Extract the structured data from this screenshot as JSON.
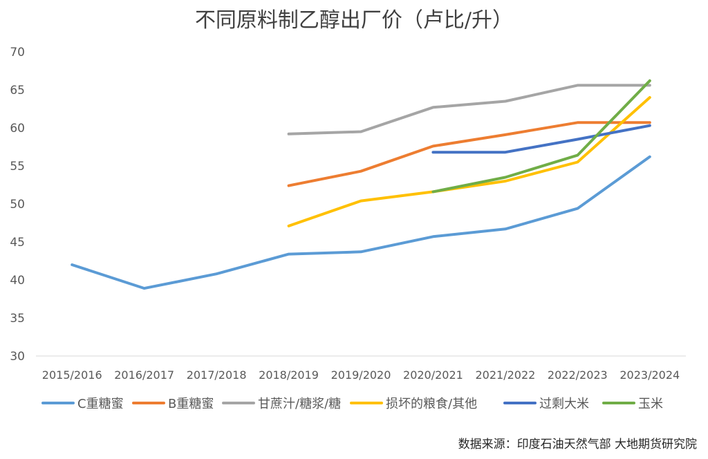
{
  "chart_data": {
    "type": "line",
    "title": "不同原料制乙醇出厂价（卢比/升）",
    "xlabel": "",
    "ylabel": "",
    "ylim": [
      30,
      70
    ],
    "y_ticks": [
      "30",
      "35",
      "40",
      "45",
      "50",
      "55",
      "60",
      "65",
      "70"
    ],
    "grid": false,
    "legend_position": "bottom",
    "categories": [
      "2015/2016",
      "2016/2017",
      "2017/2018",
      "2018/2019",
      "2019/2020",
      "2020/2021",
      "2021/2022",
      "2022/2023",
      "2023/2024"
    ],
    "series": [
      {
        "name": "C重糖蜜",
        "color": "#5B9BD5",
        "values": [
          42.0,
          38.9,
          40.8,
          43.4,
          43.7,
          45.7,
          46.7,
          49.4,
          56.2
        ]
      },
      {
        "name": "B重糖蜜",
        "color": "#ED7D31",
        "values": [
          null,
          null,
          null,
          52.4,
          54.3,
          57.6,
          59.1,
          60.7,
          60.7
        ]
      },
      {
        "name": "甘蔗汁/糖浆/糖",
        "color": "#A5A5A5",
        "values": [
          null,
          null,
          null,
          59.2,
          59.5,
          62.7,
          63.5,
          65.6,
          65.6
        ]
      },
      {
        "name": "损坏的粮食/其他",
        "color": "#FFC000",
        "values": [
          null,
          null,
          null,
          47.1,
          50.4,
          51.6,
          53.0,
          55.5,
          64.0
        ]
      },
      {
        "name": "过剩大米",
        "color": "#4472C4",
        "values": [
          null,
          null,
          null,
          null,
          null,
          56.8,
          56.8,
          58.5,
          60.3
        ]
      },
      {
        "name": "玉米",
        "color": "#70AD47",
        "values": [
          null,
          null,
          null,
          null,
          null,
          51.6,
          53.5,
          56.4,
          66.2
        ]
      }
    ]
  },
  "source_note": "数据来源：印度石油天然气部 大地期货研究院"
}
